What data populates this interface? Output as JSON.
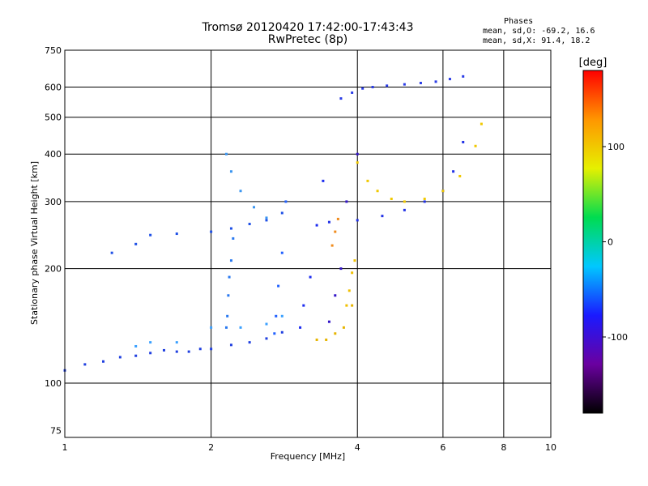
{
  "header": {
    "title": "Tromsø 20120420 17:42:00-17:43:43",
    "subtitle": "RwPretec (8p)"
  },
  "phases": {
    "heading": "Phases",
    "line_o": "mean, sd,O: -69.2, 16.6",
    "line_x": "mean, sd,X:  91.4, 18.2"
  },
  "colorbar": {
    "unit": "[deg]",
    "ticks": [
      {
        "value": 100,
        "label": "100"
      },
      {
        "value": 0,
        "label": "0"
      },
      {
        "value": -100,
        "label": "-100"
      }
    ],
    "range": [
      -180,
      180
    ],
    "colors": [
      "#000000",
      "#6a00a0",
      "#1a1aff",
      "#00c8ff",
      "#00dc50",
      "#e6f000",
      "#ff9600",
      "#ff0000"
    ]
  },
  "chart_data": {
    "type": "scatter",
    "xlabel": "Frequency [MHz]",
    "ylabel": "Stationary phase Virtual Height [km]",
    "xscale": "log",
    "yscale": "log",
    "xlim": [
      1,
      10
    ],
    "ylim": [
      72,
      750
    ],
    "grid": true,
    "xticks": [
      {
        "value": 1,
        "label": "1"
      },
      {
        "value": 2,
        "label": "2"
      },
      {
        "value": 4,
        "label": "4"
      },
      {
        "value": 6,
        "label": "6"
      },
      {
        "value": 8,
        "label": "8"
      },
      {
        "value": 10,
        "label": "10"
      }
    ],
    "yticks": [
      {
        "value": 75,
        "label": "75"
      },
      {
        "value": 100,
        "label": "100"
      },
      {
        "value": 200,
        "label": "200"
      },
      {
        "value": 300,
        "label": "300"
      },
      {
        "value": 400,
        "label": "400"
      },
      {
        "value": 500,
        "label": "500"
      },
      {
        "value": 600,
        "label": "600"
      },
      {
        "value": 750,
        "label": "750"
      }
    ],
    "series": [
      {
        "color": "#2040e0",
        "x": [
          1.0,
          1.1,
          1.2,
          1.3,
          1.4,
          1.5,
          1.6,
          1.7,
          1.8,
          1.9,
          2.0,
          2.2,
          2.4,
          2.6,
          2.8
        ],
        "y": [
          108,
          112,
          114,
          117,
          118,
          120,
          122,
          121,
          121,
          123,
          123,
          126,
          128,
          131,
          136
        ]
      },
      {
        "color": "#3aa0ff",
        "x": [
          1.4,
          1.5,
          1.7,
          2.0,
          2.3,
          2.6,
          2.8
        ],
        "y": [
          125,
          128,
          128,
          140,
          140,
          143,
          150
        ]
      },
      {
        "color": "#1e50e6",
        "x": [
          1.25,
          1.4,
          1.5,
          1.7,
          2.0,
          2.2,
          2.4,
          2.6,
          2.8
        ],
        "y": [
          220,
          232,
          245,
          247,
          250,
          255,
          262,
          268,
          280
        ]
      },
      {
        "color": "#3c96f0",
        "x": [
          2.15,
          2.2,
          2.3,
          2.45,
          2.6
        ],
        "y": [
          400,
          360,
          320,
          290,
          272
        ]
      },
      {
        "color": "#2878f0",
        "x": [
          2.15,
          2.16,
          2.17,
          2.18,
          2.2,
          2.22
        ],
        "y": [
          140,
          150,
          170,
          190,
          210,
          240
        ]
      },
      {
        "color": "#2060ff",
        "x": [
          2.7,
          2.72,
          2.75,
          2.8,
          2.85
        ],
        "y": [
          135,
          150,
          180,
          220,
          300
        ]
      },
      {
        "color": "#1c2cf0",
        "x": [
          3.05,
          3.1,
          3.2,
          3.3,
          3.4
        ],
        "y": [
          140,
          160,
          190,
          260,
          340
        ]
      },
      {
        "color": "#3214c8",
        "x": [
          3.5,
          3.6,
          3.7,
          3.8,
          4.0
        ],
        "y": [
          145,
          170,
          200,
          300,
          400
        ]
      },
      {
        "color": "#2232e6",
        "x": [
          3.5,
          4.0,
          4.5,
          5.0,
          5.5,
          6.0,
          6.3,
          6.6
        ],
        "y": [
          265,
          268,
          275,
          285,
          300,
          320,
          360,
          430
        ]
      },
      {
        "color": "#2a3ce6",
        "x": [
          3.7,
          3.9,
          4.1,
          4.3,
          4.6,
          5.0,
          5.4,
          5.8,
          6.2,
          6.6
        ],
        "y": [
          560,
          580,
          595,
          600,
          605,
          610,
          615,
          620,
          630,
          640
        ]
      },
      {
        "color": "#f0c800",
        "x": [
          4.0,
          4.2,
          4.4,
          4.7,
          5.0,
          5.5,
          6.0,
          6.5,
          7.0,
          7.2
        ],
        "y": [
          380,
          340,
          320,
          305,
          300,
          305,
          320,
          350,
          420,
          480
        ]
      },
      {
        "color": "#e6b400",
        "x": [
          3.3,
          3.45,
          3.6,
          3.75,
          3.9
        ],
        "y": [
          130,
          130,
          135,
          140,
          160
        ]
      },
      {
        "color": "#f0c000",
        "x": [
          3.8,
          3.85,
          3.9,
          3.95
        ],
        "y": [
          160,
          175,
          195,
          210
        ]
      },
      {
        "color": "#f08c1e",
        "x": [
          3.55,
          3.6,
          3.65
        ],
        "y": [
          230,
          250,
          270
        ]
      }
    ]
  }
}
